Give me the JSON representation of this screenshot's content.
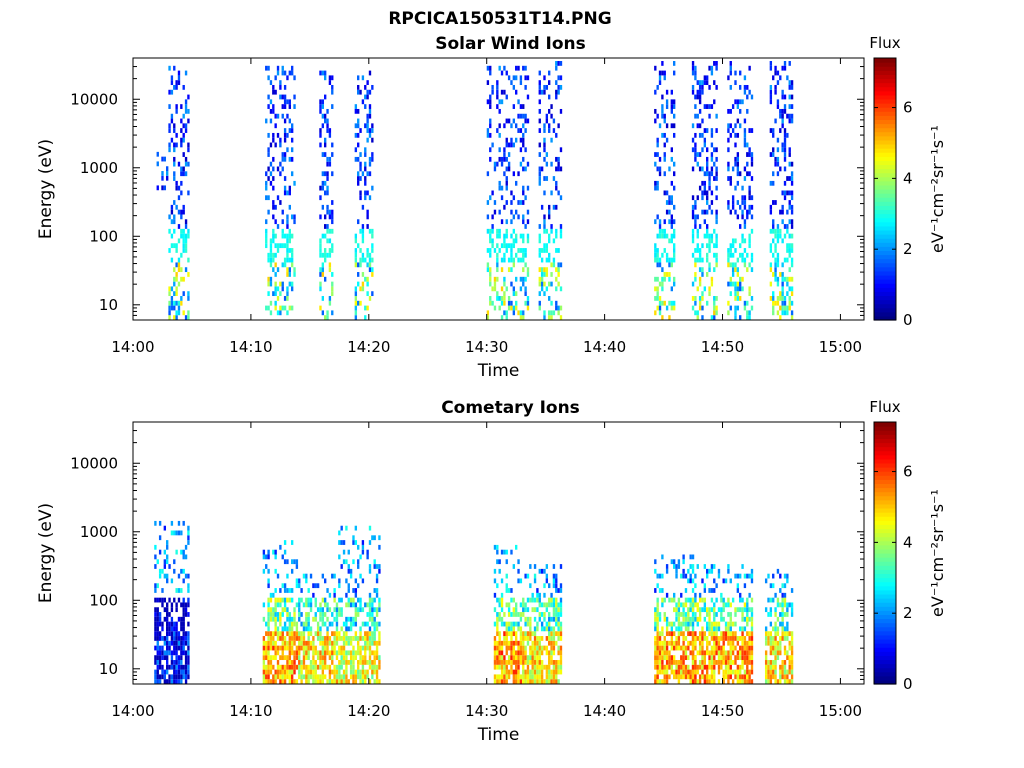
{
  "figure_title": "RPCICA150531T14.PNG",
  "chart_data": [
    {
      "type": "heatmap",
      "title": "Solar Wind Ions",
      "xlabel": "Time",
      "ylabel": "Energy (eV)",
      "xlim": [
        "14:00",
        "15:02"
      ],
      "ylim": [
        6,
        40000
      ],
      "yscale": "log",
      "x_ticks": [
        "14:00",
        "14:10",
        "14:20",
        "14:30",
        "14:40",
        "14:50",
        "15:00"
      ],
      "y_ticks": [
        "10",
        "100",
        "1000",
        "10000"
      ],
      "colorbar": {
        "title": "Flux",
        "label": "eV⁻¹cm⁻²sr⁻¹s⁻¹",
        "range": [
          0,
          7.4
        ],
        "ticks": [
          "0",
          "2",
          "4",
          "6"
        ],
        "colormap": "jet"
      },
      "bursts": [
        {
          "t_start": "14:02:00",
          "t_end": "14:03:00",
          "e_min": 400,
          "e_max": 2000,
          "flux": 1.5
        },
        {
          "t_start": "14:03:00",
          "t_end": "14:04:48",
          "e_min": 6,
          "e_max": 30000,
          "flux": 1.8
        },
        {
          "t_start": "14:11:12",
          "t_end": "14:13:48",
          "e_min": 6,
          "e_max": 30000,
          "flux": 2.2
        },
        {
          "t_start": "14:15:48",
          "t_end": "14:17:00",
          "e_min": 6,
          "e_max": 25000,
          "flux": 2.2
        },
        {
          "t_start": "14:18:48",
          "t_end": "14:20:24",
          "e_min": 6,
          "e_max": 25000,
          "flux": 2.2
        },
        {
          "t_start": "14:30:00",
          "t_end": "14:33:36",
          "e_min": 6,
          "e_max": 30000,
          "flux": 2.4
        },
        {
          "t_start": "14:34:24",
          "t_end": "14:36:24",
          "e_min": 6,
          "e_max": 35000,
          "flux": 2.4
        },
        {
          "t_start": "14:44:12",
          "t_end": "14:46:00",
          "e_min": 6,
          "e_max": 35000,
          "flux": 2.3
        },
        {
          "t_start": "14:47:24",
          "t_end": "14:49:36",
          "e_min": 6,
          "e_max": 35000,
          "flux": 2.3
        },
        {
          "t_start": "14:50:24",
          "t_end": "14:52:36",
          "e_min": 6,
          "e_max": 35000,
          "flux": 2.3
        },
        {
          "t_start": "14:54:00",
          "t_end": "14:56:00",
          "e_min": 6,
          "e_max": 35000,
          "flux": 2.3
        }
      ]
    },
    {
      "type": "heatmap",
      "title": "Cometary Ions",
      "xlabel": "Time",
      "ylabel": "Energy (eV)",
      "xlim": [
        "14:00",
        "15:02"
      ],
      "ylim": [
        6,
        40000
      ],
      "yscale": "log",
      "x_ticks": [
        "14:00",
        "14:10",
        "14:20",
        "14:30",
        "14:40",
        "14:50",
        "15:00"
      ],
      "y_ticks": [
        "10",
        "100",
        "1000",
        "10000"
      ],
      "colorbar": {
        "title": "Flux",
        "label": "eV⁻¹cm⁻²sr⁻¹s⁻¹",
        "range": [
          0,
          7.4
        ],
        "ticks": [
          "0",
          "2",
          "4",
          "6"
        ],
        "colormap": "jet"
      },
      "bursts": [
        {
          "t_start": "14:01:48",
          "t_end": "14:04:48",
          "e_min": 6,
          "e_max": 1300,
          "flux": 2.0
        },
        {
          "t_start": "14:11:00",
          "t_end": "14:14:00",
          "e_min": 6,
          "e_max": 700,
          "flux": 6.3
        },
        {
          "t_start": "14:14:00",
          "t_end": "14:17:24",
          "e_min": 6,
          "e_max": 220,
          "flux": 5.8
        },
        {
          "t_start": "14:17:24",
          "t_end": "14:21:00",
          "e_min": 6,
          "e_max": 1100,
          "flux": 5.5
        },
        {
          "t_start": "14:30:36",
          "t_end": "14:33:00",
          "e_min": 6,
          "e_max": 550,
          "flux": 6.3
        },
        {
          "t_start": "14:33:00",
          "t_end": "14:36:24",
          "e_min": 6,
          "e_max": 300,
          "flux": 5.8
        },
        {
          "t_start": "14:44:12",
          "t_end": "14:47:48",
          "e_min": 6,
          "e_max": 450,
          "flux": 6.3
        },
        {
          "t_start": "14:47:24",
          "t_end": "14:52:36",
          "e_min": 6,
          "e_max": 300,
          "flux": 6.3
        },
        {
          "t_start": "14:53:36",
          "t_end": "14:56:00",
          "e_min": 6,
          "e_max": 250,
          "flux": 5.8
        }
      ]
    }
  ]
}
